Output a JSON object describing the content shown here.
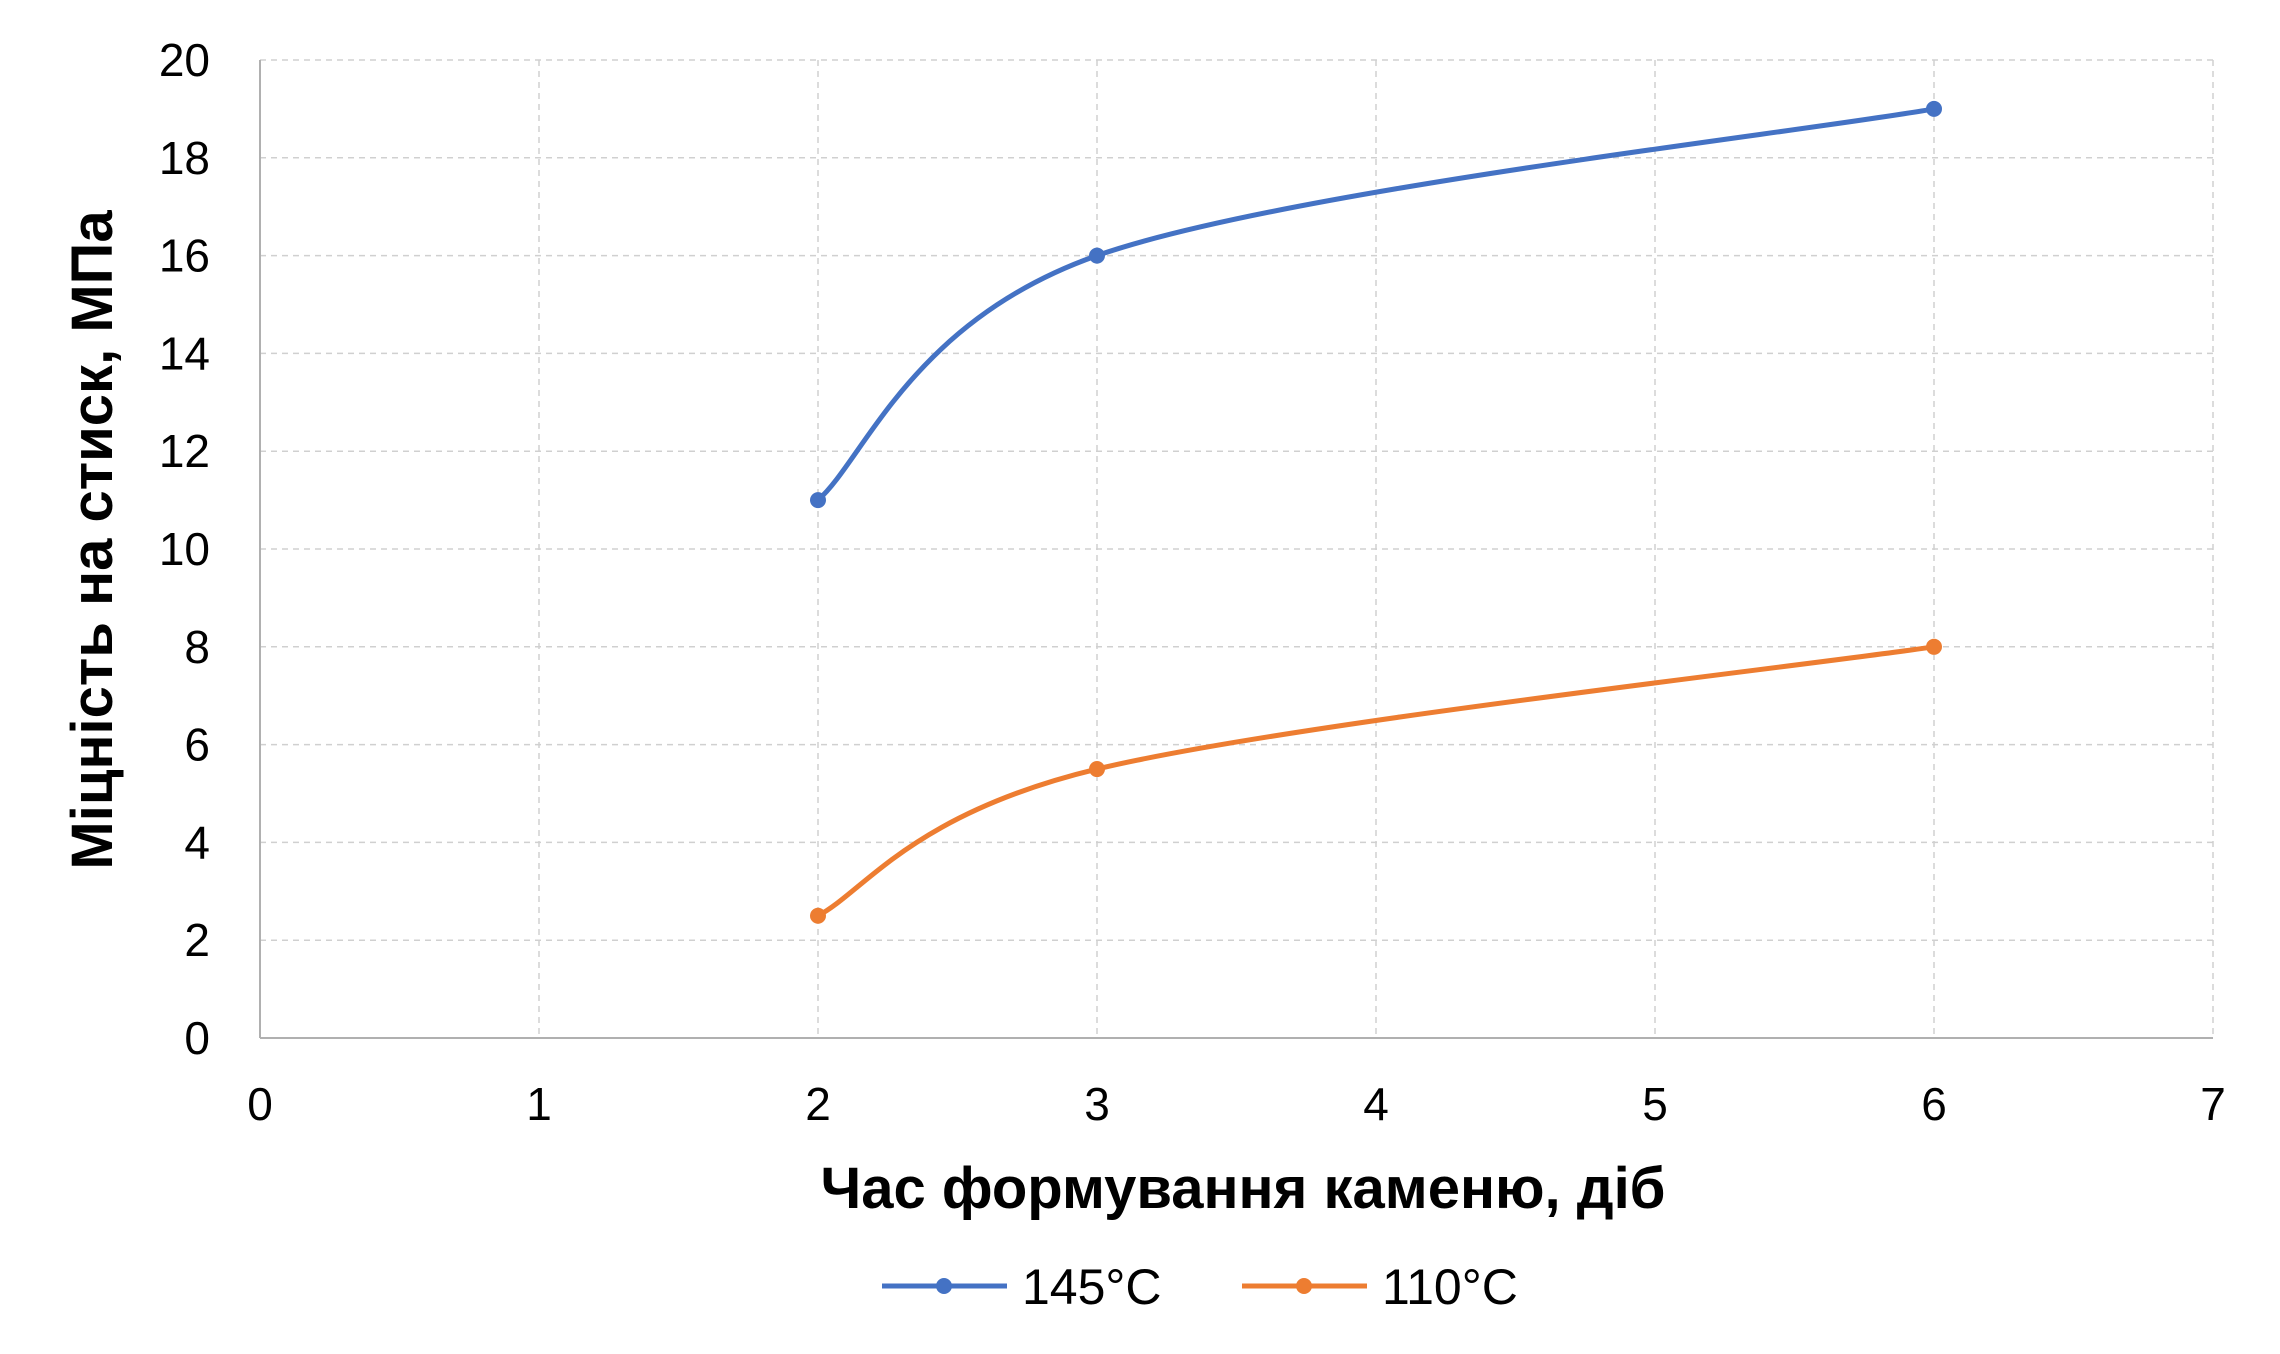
{
  "chart_data": {
    "type": "line",
    "title": "",
    "xlabel": "Час формування каменю, діб",
    "ylabel": "Міцність на стиск, МПа",
    "xlim": [
      0,
      7
    ],
    "ylim": [
      0,
      20
    ],
    "x_ticks": [
      0,
      1,
      2,
      3,
      4,
      5,
      6,
      7
    ],
    "y_ticks": [
      0,
      2,
      4,
      6,
      8,
      10,
      12,
      14,
      16,
      18,
      20
    ],
    "grid": true,
    "smooth": true,
    "legend_position": "bottom",
    "series": [
      {
        "name": "145°C",
        "color": "#4472C4",
        "x": [
          2,
          3,
          6
        ],
        "y": [
          11,
          16,
          19
        ]
      },
      {
        "name": "110°C",
        "color": "#ED7D31",
        "x": [
          2,
          3,
          6
        ],
        "y": [
          2.5,
          5.5,
          8
        ]
      }
    ]
  }
}
